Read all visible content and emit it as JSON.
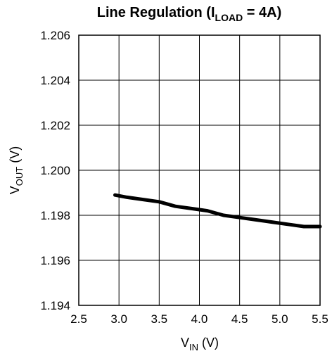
{
  "chart_data": {
    "type": "line",
    "title": "Line Regulation (I",
    "title_sub": "LOAD",
    "title_tail": " = 4A)",
    "xlabel": "V",
    "xlabel_sub": "IN",
    "xlabel_tail": " (V)",
    "ylabel": "V",
    "ylabel_sub": "OUT",
    "ylabel_tail": " (V)",
    "xlim": [
      2.5,
      5.5
    ],
    "ylim": [
      1.194,
      1.206
    ],
    "x_ticks": [
      2.5,
      3.0,
      3.5,
      4.0,
      4.5,
      5.0,
      5.5
    ],
    "x_tick_labels": [
      "2.5",
      "3.0",
      "3.5",
      "4.0",
      "4.5",
      "5.0",
      "5.5"
    ],
    "y_ticks": [
      1.194,
      1.196,
      1.198,
      1.2,
      1.202,
      1.204,
      1.206
    ],
    "y_tick_labels": [
      "1.194",
      "1.196",
      "1.198",
      "1.200",
      "1.202",
      "1.204",
      "1.206"
    ],
    "grid": true,
    "line_color": "#000000",
    "series": [
      {
        "x": [
          2.95,
          3.1,
          3.3,
          3.5,
          3.7,
          3.9,
          4.1,
          4.3,
          4.5,
          4.7,
          4.9,
          5.1,
          5.3,
          5.5
        ],
        "y": [
          1.1989,
          1.1988,
          1.1987,
          1.1986,
          1.1984,
          1.1983,
          1.1982,
          1.198,
          1.1979,
          1.1978,
          1.1977,
          1.1976,
          1.1975,
          1.1975
        ]
      }
    ]
  }
}
